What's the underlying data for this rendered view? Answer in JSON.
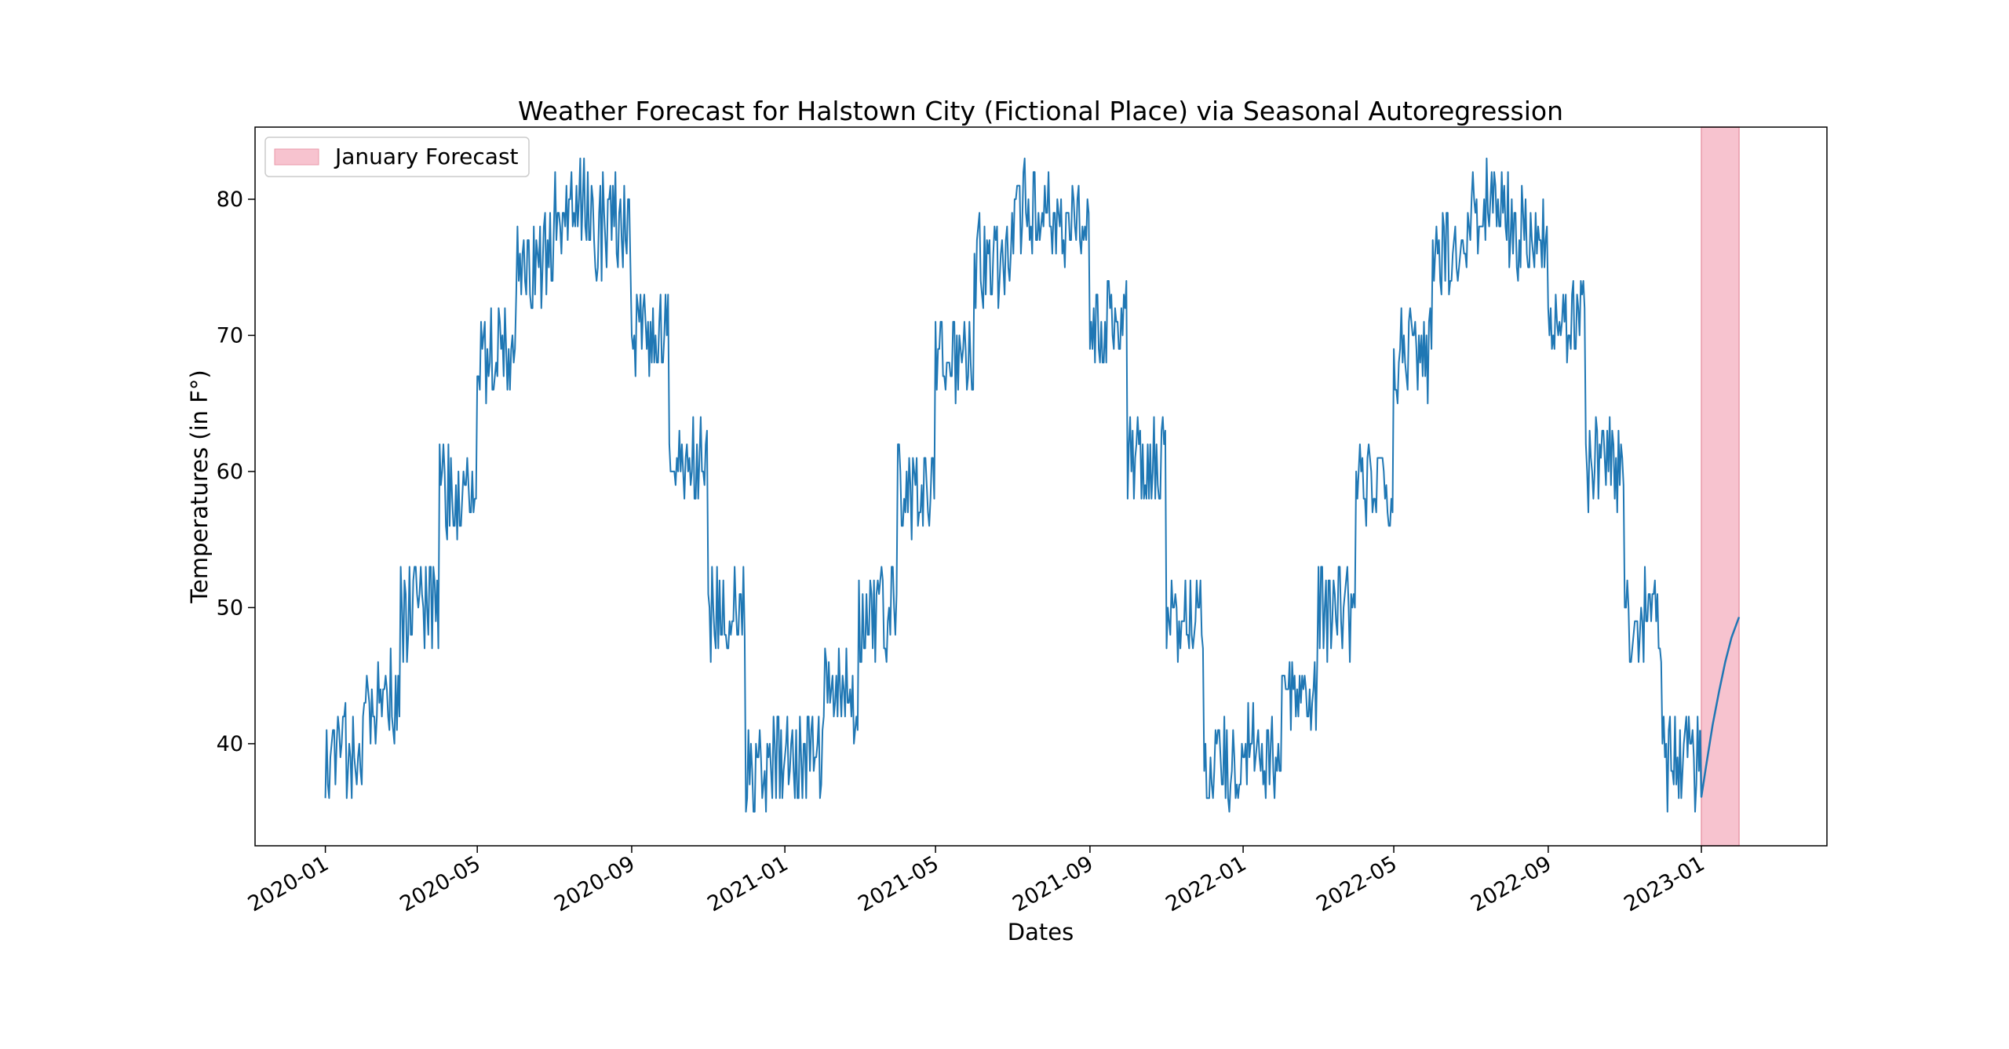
{
  "chart_data": {
    "type": "line",
    "title": "Weather Forecast for Halstown City (Fictional Place) via Seasonal Autoregression",
    "xlabel": "Dates",
    "ylabel": "Temperatures (in F°)",
    "xlim": [
      "2019-11-06",
      "2023-04-11"
    ],
    "ylim": [
      32.5,
      85.3
    ],
    "grid": false,
    "legend": {
      "position": "upper left",
      "entries": [
        "January Forecast"
      ]
    },
    "x_ticks": [
      "2020-01",
      "2020-05",
      "2020-09",
      "2021-01",
      "2021-05",
      "2021-09",
      "2022-01",
      "2022-05",
      "2022-09",
      "2023-01"
    ],
    "x_tick_dates": [
      "2020-01-01",
      "2020-05-01",
      "2020-09-01",
      "2021-01-01",
      "2021-05-01",
      "2021-09-01",
      "2022-01-01",
      "2022-05-01",
      "2022-09-01",
      "2023-01-01"
    ],
    "y_ticks": [
      40,
      50,
      60,
      70,
      80
    ],
    "shaded_region": {
      "label": "January Forecast",
      "start": "2023-01-01",
      "end": "2023-01-31",
      "color": "#f7c3cf",
      "edge_color": "#e99aaa"
    },
    "series": [
      {
        "color": "#1f77b4",
        "kind": "daily observed temperatures, monthly ranges",
        "monthly_ranges": [
          {
            "month": "2020-01",
            "min": 36,
            "max": 43
          },
          {
            "month": "2020-02",
            "min": 40,
            "max": 47
          },
          {
            "month": "2020-03",
            "min": 46,
            "max": 53
          },
          {
            "month": "2020-04",
            "min": 55,
            "max": 62
          },
          {
            "month": "2020-05",
            "min": 65,
            "max": 72
          },
          {
            "month": "2020-06",
            "min": 72,
            "max": 79
          },
          {
            "month": "2020-07",
            "min": 76,
            "max": 83
          },
          {
            "month": "2020-08",
            "min": 74,
            "max": 82
          },
          {
            "month": "2020-09",
            "min": 67,
            "max": 73
          },
          {
            "month": "2020-10",
            "min": 57,
            "max": 64
          },
          {
            "month": "2020-11",
            "min": 46,
            "max": 53
          },
          {
            "month": "2020-12",
            "min": 35,
            "max": 42
          },
          {
            "month": "2021-01",
            "min": 36,
            "max": 43
          },
          {
            "month": "2021-02",
            "min": 40,
            "max": 47
          },
          {
            "month": "2021-03",
            "min": 46,
            "max": 53
          },
          {
            "month": "2021-04",
            "min": 55,
            "max": 62
          },
          {
            "month": "2021-05",
            "min": 65,
            "max": 72
          },
          {
            "month": "2021-06",
            "min": 72,
            "max": 79
          },
          {
            "month": "2021-07",
            "min": 76,
            "max": 83
          },
          {
            "month": "2021-08",
            "min": 75,
            "max": 81
          },
          {
            "month": "2021-09",
            "min": 67,
            "max": 74
          },
          {
            "month": "2021-10",
            "min": 57,
            "max": 64
          },
          {
            "month": "2021-11",
            "min": 46,
            "max": 53
          },
          {
            "month": "2021-12",
            "min": 35,
            "max": 42
          },
          {
            "month": "2022-01",
            "min": 36,
            "max": 43
          },
          {
            "month": "2022-02",
            "min": 41,
            "max": 47
          },
          {
            "month": "2022-03",
            "min": 46,
            "max": 53
          },
          {
            "month": "2022-04",
            "min": 55,
            "max": 62
          },
          {
            "month": "2022-05",
            "min": 65,
            "max": 72
          },
          {
            "month": "2022-06",
            "min": 73,
            "max": 79
          },
          {
            "month": "2022-07",
            "min": 76,
            "max": 83
          },
          {
            "month": "2022-08",
            "min": 74,
            "max": 81
          },
          {
            "month": "2022-09",
            "min": 68,
            "max": 74
          },
          {
            "month": "2022-10",
            "min": 57,
            "max": 64
          },
          {
            "month": "2022-11",
            "min": 46,
            "max": 53
          },
          {
            "month": "2022-12",
            "min": 35,
            "max": 42
          }
        ]
      },
      {
        "color": "#1f77b4",
        "kind": "forecast",
        "x": [
          "2023-01-01",
          "2023-01-05",
          "2023-01-10",
          "2023-01-15",
          "2023-01-20",
          "2023-01-25",
          "2023-01-31"
        ],
        "y": [
          36.1,
          38.5,
          41.4,
          43.8,
          46.0,
          47.8,
          49.3
        ]
      }
    ]
  }
}
